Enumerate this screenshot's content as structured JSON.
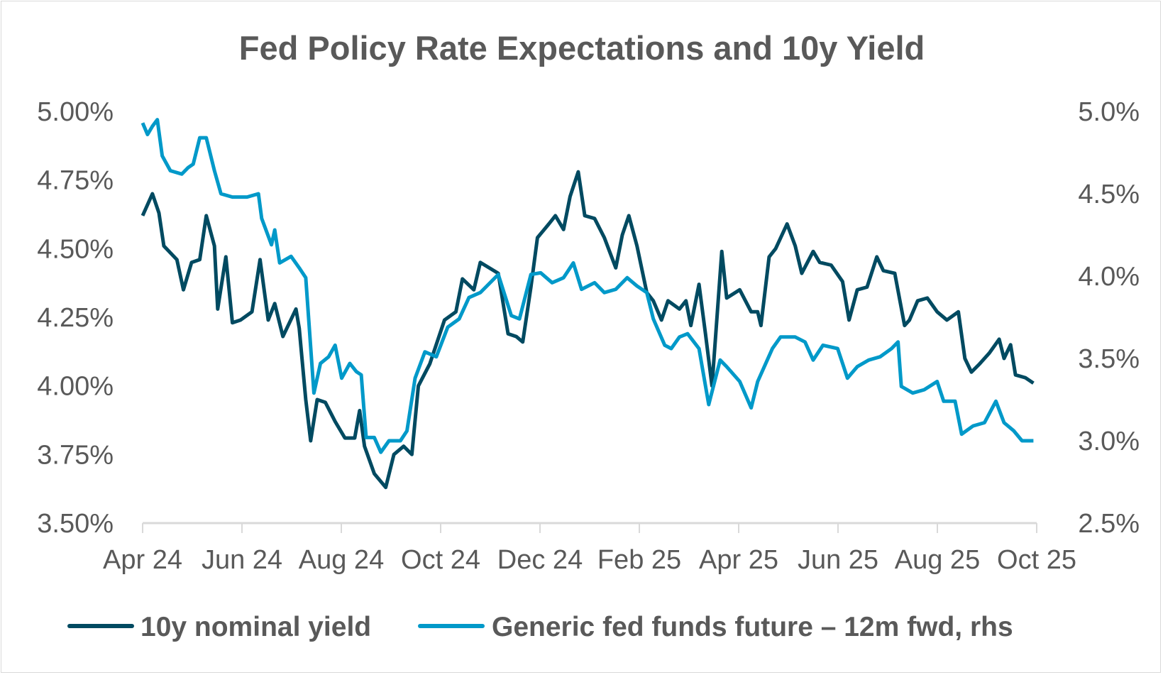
{
  "chart_data": {
    "type": "line",
    "title": "Fed Policy Rate Expectations and 10y Yield",
    "xlabel": "",
    "ylabel": "",
    "grid": false,
    "legend_position": "bottom",
    "x_ticks": [
      "Apr 24",
      "Jun 24",
      "Aug 24",
      "Oct 24",
      "Dec 24",
      "Feb 25",
      "Apr 25",
      "Jun 25",
      "Aug 25",
      "Oct 25"
    ],
    "xlim": [
      "2024-04-01",
      "2025-10-01"
    ],
    "y_left": {
      "ticks": [
        "5.00%",
        "4.75%",
        "4.50%",
        "4.25%",
        "4.00%",
        "3.75%",
        "3.50%"
      ],
      "ylim": [
        3.5,
        5.0
      ]
    },
    "y_right": {
      "ticks": [
        "5.0%",
        "4.5%",
        "4.0%",
        "3.5%",
        "3.0%",
        "2.5%"
      ],
      "ylim": [
        2.5,
        5.0
      ]
    },
    "series": [
      {
        "name": "10y nominal yield",
        "axis": "left",
        "color": "#004A61",
        "points": [
          [
            "2024-04-01",
            4.62
          ],
          [
            "2024-04-07",
            4.7
          ],
          [
            "2024-04-11",
            4.63
          ],
          [
            "2024-04-14",
            4.51
          ],
          [
            "2024-04-22",
            4.46
          ],
          [
            "2024-04-26",
            4.35
          ],
          [
            "2024-05-01",
            4.45
          ],
          [
            "2024-05-06",
            4.46
          ],
          [
            "2024-05-10",
            4.62
          ],
          [
            "2024-05-15",
            4.51
          ],
          [
            "2024-05-17",
            4.28
          ],
          [
            "2024-05-22",
            4.47
          ],
          [
            "2024-05-26",
            4.23
          ],
          [
            "2024-05-31",
            4.24
          ],
          [
            "2024-06-07",
            4.27
          ],
          [
            "2024-06-12",
            4.46
          ],
          [
            "2024-06-17",
            4.24
          ],
          [
            "2024-06-21",
            4.3
          ],
          [
            "2024-06-26",
            4.18
          ],
          [
            "2024-07-04",
            4.28
          ],
          [
            "2024-07-06",
            4.21
          ],
          [
            "2024-07-10",
            3.95
          ],
          [
            "2024-07-13",
            3.8
          ],
          [
            "2024-07-17",
            3.95
          ],
          [
            "2024-07-22",
            3.94
          ],
          [
            "2024-07-28",
            3.87
          ],
          [
            "2024-08-03",
            3.81
          ],
          [
            "2024-08-09",
            3.81
          ],
          [
            "2024-08-12",
            3.91
          ],
          [
            "2024-08-15",
            3.78
          ],
          [
            "2024-08-21",
            3.68
          ],
          [
            "2024-08-28",
            3.63
          ],
          [
            "2024-09-02",
            3.75
          ],
          [
            "2024-09-08",
            3.78
          ],
          [
            "2024-09-13",
            3.75
          ],
          [
            "2024-09-17",
            4.0
          ],
          [
            "2024-09-24",
            4.08
          ],
          [
            "2024-10-03",
            4.24
          ],
          [
            "2024-10-10",
            4.27
          ],
          [
            "2024-10-14",
            4.39
          ],
          [
            "2024-10-21",
            4.35
          ],
          [
            "2024-10-25",
            4.45
          ],
          [
            "2024-11-05",
            4.41
          ],
          [
            "2024-11-11",
            4.19
          ],
          [
            "2024-11-16",
            4.18
          ],
          [
            "2024-11-20",
            4.16
          ],
          [
            "2024-11-25",
            4.36
          ],
          [
            "2024-11-29",
            4.54
          ],
          [
            "2024-12-06",
            4.59
          ],
          [
            "2024-12-10",
            4.62
          ],
          [
            "2024-12-15",
            4.57
          ],
          [
            "2024-12-19",
            4.69
          ],
          [
            "2024-12-24",
            4.78
          ],
          [
            "2024-12-28",
            4.62
          ],
          [
            "2025-01-03",
            4.61
          ],
          [
            "2025-01-09",
            4.54
          ],
          [
            "2025-01-16",
            4.43
          ],
          [
            "2025-01-20",
            4.55
          ],
          [
            "2025-01-24",
            4.62
          ],
          [
            "2025-01-29",
            4.51
          ],
          [
            "2025-02-04",
            4.34
          ],
          [
            "2025-02-08",
            4.31
          ],
          [
            "2025-02-13",
            4.24
          ],
          [
            "2025-02-17",
            4.31
          ],
          [
            "2025-02-24",
            4.28
          ],
          [
            "2025-02-28",
            4.31
          ],
          [
            "2025-03-03",
            4.22
          ],
          [
            "2025-03-08",
            4.37
          ],
          [
            "2025-03-12",
            4.19
          ],
          [
            "2025-03-16",
            4.0
          ],
          [
            "2025-03-22",
            4.49
          ],
          [
            "2025-03-25",
            4.32
          ],
          [
            "2025-04-02",
            4.35
          ],
          [
            "2025-04-09",
            4.27
          ],
          [
            "2025-04-13",
            4.27
          ],
          [
            "2025-04-15",
            4.22
          ],
          [
            "2025-04-20",
            4.47
          ],
          [
            "2025-04-24",
            4.5
          ],
          [
            "2025-05-01",
            4.59
          ],
          [
            "2025-05-06",
            4.51
          ],
          [
            "2025-05-10",
            4.41
          ],
          [
            "2025-05-17",
            4.49
          ],
          [
            "2025-05-21",
            4.45
          ],
          [
            "2025-05-28",
            4.44
          ],
          [
            "2025-06-04",
            4.38
          ],
          [
            "2025-06-08",
            4.24
          ],
          [
            "2025-06-13",
            4.35
          ],
          [
            "2025-06-19",
            4.36
          ],
          [
            "2025-06-25",
            4.47
          ],
          [
            "2025-06-29",
            4.42
          ],
          [
            "2025-07-06",
            4.41
          ],
          [
            "2025-07-12",
            4.22
          ],
          [
            "2025-07-15",
            4.24
          ],
          [
            "2025-07-20",
            4.31
          ],
          [
            "2025-07-26",
            4.32
          ],
          [
            "2025-08-01",
            4.27
          ],
          [
            "2025-08-07",
            4.24
          ],
          [
            "2025-08-14",
            4.27
          ],
          [
            "2025-08-18",
            4.1
          ],
          [
            "2025-08-22",
            4.05
          ],
          [
            "2025-08-27",
            4.08
          ],
          [
            "2025-09-02",
            4.12
          ],
          [
            "2025-09-08",
            4.17
          ],
          [
            "2025-09-11",
            4.1
          ],
          [
            "2025-09-15",
            4.15
          ],
          [
            "2025-09-18",
            4.04
          ],
          [
            "2025-09-24",
            4.03
          ],
          [
            "2025-09-29",
            4.01
          ]
        ]
      },
      {
        "name": "Generic fed funds future – 12m fwd, rhs",
        "axis": "right",
        "color": "#0099C9",
        "points": [
          [
            "2024-04-01",
            4.93
          ],
          [
            "2024-04-04",
            4.86
          ],
          [
            "2024-04-07",
            4.91
          ],
          [
            "2024-04-10",
            4.95
          ],
          [
            "2024-04-13",
            4.73
          ],
          [
            "2024-04-18",
            4.64
          ],
          [
            "2024-04-25",
            4.62
          ],
          [
            "2024-04-29",
            4.66
          ],
          [
            "2024-05-02",
            4.68
          ],
          [
            "2024-05-06",
            4.84
          ],
          [
            "2024-05-10",
            4.84
          ],
          [
            "2024-05-15",
            4.64
          ],
          [
            "2024-05-19",
            4.5
          ],
          [
            "2024-05-26",
            4.48
          ],
          [
            "2024-06-04",
            4.48
          ],
          [
            "2024-06-11",
            4.5
          ],
          [
            "2024-06-13",
            4.35
          ],
          [
            "2024-06-19",
            4.19
          ],
          [
            "2024-06-21",
            4.28
          ],
          [
            "2024-06-24",
            4.08
          ],
          [
            "2024-07-01",
            4.12
          ],
          [
            "2024-07-06",
            4.05
          ],
          [
            "2024-07-10",
            3.99
          ],
          [
            "2024-07-15",
            3.29
          ],
          [
            "2024-07-19",
            3.47
          ],
          [
            "2024-07-24",
            3.51
          ],
          [
            "2024-07-28",
            3.58
          ],
          [
            "2024-08-01",
            3.38
          ],
          [
            "2024-08-06",
            3.47
          ],
          [
            "2024-08-10",
            3.42
          ],
          [
            "2024-08-13",
            3.4
          ],
          [
            "2024-08-16",
            3.02
          ],
          [
            "2024-08-21",
            3.02
          ],
          [
            "2024-08-25",
            2.93
          ],
          [
            "2024-08-30",
            3.0
          ],
          [
            "2024-09-06",
            3.0
          ],
          [
            "2024-09-10",
            3.06
          ],
          [
            "2024-09-15",
            3.38
          ],
          [
            "2024-09-21",
            3.54
          ],
          [
            "2024-09-28",
            3.51
          ],
          [
            "2024-10-05",
            3.69
          ],
          [
            "2024-10-12",
            3.74
          ],
          [
            "2024-10-18",
            3.87
          ],
          [
            "2024-10-25",
            3.9
          ],
          [
            "2024-11-05",
            4.01
          ],
          [
            "2024-11-13",
            3.76
          ],
          [
            "2024-11-18",
            3.74
          ],
          [
            "2024-11-25",
            4.01
          ],
          [
            "2024-12-01",
            4.02
          ],
          [
            "2024-12-08",
            3.96
          ],
          [
            "2024-12-15",
            3.99
          ],
          [
            "2024-12-21",
            4.08
          ],
          [
            "2024-12-26",
            3.92
          ],
          [
            "2025-01-03",
            3.96
          ],
          [
            "2025-01-09",
            3.9
          ],
          [
            "2025-01-16",
            3.92
          ],
          [
            "2025-01-23",
            3.99
          ],
          [
            "2025-01-29",
            3.94
          ],
          [
            "2025-02-04",
            3.9
          ],
          [
            "2025-02-08",
            3.74
          ],
          [
            "2025-02-15",
            3.58
          ],
          [
            "2025-02-19",
            3.56
          ],
          [
            "2025-02-24",
            3.63
          ],
          [
            "2025-03-01",
            3.65
          ],
          [
            "2025-03-08",
            3.56
          ],
          [
            "2025-03-14",
            3.22
          ],
          [
            "2025-03-21",
            3.49
          ],
          [
            "2025-03-25",
            3.45
          ],
          [
            "2025-04-02",
            3.36
          ],
          [
            "2025-04-09",
            3.2
          ],
          [
            "2025-04-13",
            3.36
          ],
          [
            "2025-04-22",
            3.56
          ],
          [
            "2025-04-27",
            3.63
          ],
          [
            "2025-05-06",
            3.63
          ],
          [
            "2025-05-12",
            3.6
          ],
          [
            "2025-05-17",
            3.49
          ],
          [
            "2025-05-23",
            3.58
          ],
          [
            "2025-06-01",
            3.56
          ],
          [
            "2025-06-07",
            3.38
          ],
          [
            "2025-06-13",
            3.45
          ],
          [
            "2025-06-20",
            3.49
          ],
          [
            "2025-06-27",
            3.51
          ],
          [
            "2025-07-04",
            3.56
          ],
          [
            "2025-07-08",
            3.6
          ],
          [
            "2025-07-10",
            3.33
          ],
          [
            "2025-07-17",
            3.29
          ],
          [
            "2025-07-24",
            3.31
          ],
          [
            "2025-08-01",
            3.36
          ],
          [
            "2025-08-05",
            3.24
          ],
          [
            "2025-08-12",
            3.24
          ],
          [
            "2025-08-16",
            3.04
          ],
          [
            "2025-08-23",
            3.09
          ],
          [
            "2025-08-30",
            3.11
          ],
          [
            "2025-09-06",
            3.24
          ],
          [
            "2025-09-11",
            3.11
          ],
          [
            "2025-09-17",
            3.06
          ],
          [
            "2025-09-22",
            3.0
          ],
          [
            "2025-09-29",
            3.0
          ]
        ]
      }
    ]
  }
}
